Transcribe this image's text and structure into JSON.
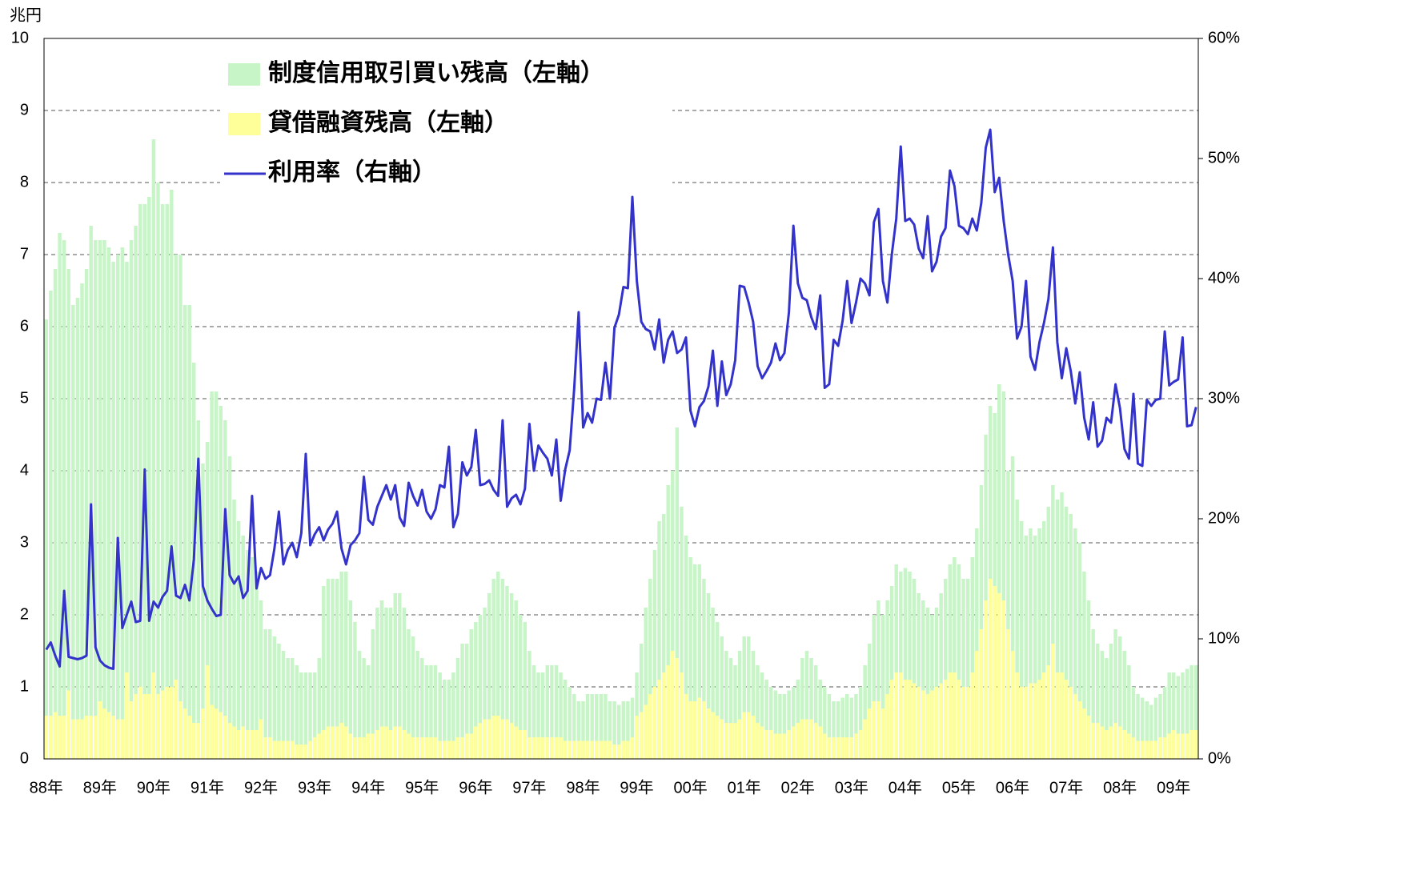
{
  "chart_data": {
    "type": "bar-line",
    "unit_label": "兆円",
    "categories": [
      "88年",
      null,
      null,
      null,
      null,
      null,
      null,
      null,
      null,
      null,
      null,
      null,
      "89年",
      null,
      null,
      null,
      null,
      null,
      null,
      null,
      null,
      null,
      null,
      null,
      "90年",
      null,
      null,
      null,
      null,
      null,
      null,
      null,
      null,
      null,
      null,
      null,
      "91年",
      null,
      null,
      null,
      null,
      null,
      null,
      null,
      null,
      null,
      null,
      null,
      "92年",
      null,
      null,
      null,
      null,
      null,
      null,
      null,
      null,
      null,
      null,
      null,
      "93年",
      null,
      null,
      null,
      null,
      null,
      null,
      null,
      null,
      null,
      null,
      null,
      "94年",
      null,
      null,
      null,
      null,
      null,
      null,
      null,
      null,
      null,
      null,
      null,
      "95年",
      null,
      null,
      null,
      null,
      null,
      null,
      null,
      null,
      null,
      null,
      null,
      "96年",
      null,
      null,
      null,
      null,
      null,
      null,
      null,
      null,
      null,
      null,
      null,
      "97年",
      null,
      null,
      null,
      null,
      null,
      null,
      null,
      null,
      null,
      null,
      null,
      "98年",
      null,
      null,
      null,
      null,
      null,
      null,
      null,
      null,
      null,
      null,
      null,
      "99年",
      null,
      null,
      null,
      null,
      null,
      null,
      null,
      null,
      null,
      null,
      null,
      "00年",
      null,
      null,
      null,
      null,
      null,
      null,
      null,
      null,
      null,
      null,
      null,
      "01年",
      null,
      null,
      null,
      null,
      null,
      null,
      null,
      null,
      null,
      null,
      null,
      "02年",
      null,
      null,
      null,
      null,
      null,
      null,
      null,
      null,
      null,
      null,
      null,
      "03年",
      null,
      null,
      null,
      null,
      null,
      null,
      null,
      null,
      null,
      null,
      null,
      "04年",
      null,
      null,
      null,
      null,
      null,
      null,
      null,
      null,
      null,
      null,
      null,
      "05年",
      null,
      null,
      null,
      null,
      null,
      null,
      null,
      null,
      null,
      null,
      null,
      "06年",
      null,
      null,
      null,
      null,
      null,
      null,
      null,
      null,
      null,
      null,
      null,
      "07年",
      null,
      null,
      null,
      null,
      null,
      null,
      null,
      null,
      null,
      null,
      null,
      "08年",
      null,
      null,
      null,
      null,
      null,
      null,
      null,
      null,
      null,
      null,
      null,
      "09年",
      null,
      null,
      null,
      null,
      null
    ],
    "series": [
      {
        "name": "制度信用取引買い残高（左軸）",
        "color": "#c8f5c8",
        "kind": "bar",
        "values": [
          6.1,
          6.5,
          6.8,
          7.3,
          7.2,
          6.8,
          6.3,
          6.4,
          6.6,
          6.8,
          7.4,
          7.2,
          7.2,
          7.2,
          7.1,
          6.9,
          7.0,
          7.1,
          6.9,
          7.2,
          7.4,
          7.7,
          7.7,
          7.8,
          8.6,
          8.0,
          7.7,
          7.7,
          7.9,
          7.0,
          7.0,
          6.3,
          6.3,
          5.5,
          4.7,
          4.1,
          4.4,
          5.1,
          5.1,
          4.9,
          4.7,
          4.2,
          3.6,
          3.3,
          3.1,
          2.9,
          2.8,
          2.6,
          2.2,
          1.8,
          1.8,
          1.7,
          1.6,
          1.5,
          1.4,
          1.4,
          1.3,
          1.2,
          1.2,
          1.2,
          1.2,
          1.4,
          2.4,
          2.5,
          2.5,
          2.5,
          2.6,
          2.6,
          2.2,
          1.9,
          1.5,
          1.4,
          1.3,
          1.8,
          2.1,
          2.2,
          2.1,
          2.1,
          2.3,
          2.3,
          2.1,
          1.8,
          1.7,
          1.5,
          1.4,
          1.3,
          1.3,
          1.3,
          1.2,
          1.1,
          1.1,
          1.2,
          1.4,
          1.6,
          1.6,
          1.8,
          1.9,
          2.0,
          2.1,
          2.3,
          2.5,
          2.6,
          2.5,
          2.4,
          2.3,
          2.2,
          2.0,
          1.9,
          1.5,
          1.3,
          1.2,
          1.2,
          1.3,
          1.3,
          1.3,
          1.2,
          1.1,
          1.0,
          0.9,
          0.8,
          0.8,
          0.9,
          0.9,
          0.9,
          0.9,
          0.9,
          0.8,
          0.8,
          0.75,
          0.8,
          0.8,
          0.85,
          1.2,
          1.6,
          2.1,
          2.5,
          2.9,
          3.3,
          3.4,
          3.8,
          4.0,
          4.6,
          3.5,
          3.1,
          2.8,
          2.7,
          2.7,
          2.5,
          2.3,
          2.1,
          1.9,
          1.7,
          1.5,
          1.4,
          1.3,
          1.5,
          1.7,
          1.7,
          1.5,
          1.3,
          1.2,
          1.1,
          1.0,
          0.95,
          0.9,
          0.9,
          0.95,
          1.0,
          1.1,
          1.4,
          1.5,
          1.4,
          1.3,
          1.1,
          1.0,
          0.9,
          0.8,
          0.8,
          0.85,
          0.9,
          0.85,
          0.9,
          1.0,
          1.3,
          1.6,
          2.0,
          2.2,
          2.0,
          2.2,
          2.4,
          2.7,
          2.6,
          2.65,
          2.6,
          2.5,
          2.3,
          2.2,
          2.1,
          2.0,
          2.1,
          2.3,
          2.5,
          2.7,
          2.8,
          2.7,
          2.5,
          2.5,
          2.8,
          3.2,
          3.8,
          4.5,
          4.9,
          4.8,
          5.2,
          5.1,
          4.0,
          4.2,
          3.6,
          3.3,
          3.1,
          3.2,
          3.1,
          3.2,
          3.3,
          3.5,
          3.8,
          3.6,
          3.7,
          3.5,
          3.4,
          3.2,
          3.0,
          2.6,
          2.2,
          1.8,
          1.6,
          1.5,
          1.4,
          1.6,
          1.8,
          1.7,
          1.5,
          1.3,
          1.0,
          0.9,
          0.85,
          0.8,
          0.75,
          0.85,
          0.9,
          1.0,
          1.2,
          1.2,
          1.15,
          1.2,
          1.25,
          1.3,
          1.3
        ]
      },
      {
        "name": "貸借融資残高（左軸）",
        "color": "#ffff99",
        "kind": "bar",
        "values": [
          0.6,
          0.6,
          0.65,
          0.6,
          0.6,
          0.95,
          0.55,
          0.55,
          0.55,
          0.6,
          0.6,
          0.6,
          0.8,
          0.7,
          0.65,
          0.6,
          0.55,
          0.55,
          1.2,
          0.8,
          0.9,
          1.0,
          0.9,
          0.9,
          1.2,
          0.9,
          0.95,
          1.0,
          1.0,
          1.1,
          0.8,
          0.7,
          0.6,
          0.5,
          0.5,
          0.7,
          1.3,
          0.75,
          0.7,
          0.65,
          0.6,
          0.5,
          0.45,
          0.4,
          0.45,
          0.4,
          0.4,
          0.4,
          0.55,
          0.3,
          0.3,
          0.25,
          0.25,
          0.25,
          0.25,
          0.25,
          0.2,
          0.2,
          0.2,
          0.25,
          0.3,
          0.35,
          0.4,
          0.45,
          0.45,
          0.45,
          0.5,
          0.45,
          0.35,
          0.3,
          0.3,
          0.3,
          0.35,
          0.35,
          0.4,
          0.45,
          0.45,
          0.4,
          0.45,
          0.45,
          0.4,
          0.35,
          0.3,
          0.3,
          0.3,
          0.3,
          0.3,
          0.3,
          0.25,
          0.25,
          0.25,
          0.25,
          0.3,
          0.3,
          0.35,
          0.35,
          0.45,
          0.5,
          0.55,
          0.55,
          0.6,
          0.6,
          0.55,
          0.55,
          0.5,
          0.45,
          0.4,
          0.4,
          0.3,
          0.3,
          0.3,
          0.3,
          0.3,
          0.3,
          0.3,
          0.3,
          0.25,
          0.25,
          0.25,
          0.25,
          0.25,
          0.25,
          0.25,
          0.25,
          0.25,
          0.25,
          0.25,
          0.2,
          0.2,
          0.25,
          0.25,
          0.3,
          0.6,
          0.65,
          0.75,
          0.9,
          1.0,
          1.1,
          1.2,
          1.3,
          1.5,
          1.4,
          1.2,
          0.9,
          0.8,
          0.8,
          0.85,
          0.8,
          0.7,
          0.65,
          0.6,
          0.55,
          0.5,
          0.5,
          0.5,
          0.55,
          0.65,
          0.65,
          0.6,
          0.5,
          0.45,
          0.4,
          0.4,
          0.35,
          0.35,
          0.35,
          0.4,
          0.45,
          0.5,
          0.55,
          0.55,
          0.55,
          0.5,
          0.45,
          0.35,
          0.3,
          0.3,
          0.3,
          0.3,
          0.3,
          0.3,
          0.35,
          0.4,
          0.55,
          0.7,
          0.8,
          0.8,
          0.7,
          0.9,
          1.1,
          1.2,
          1.2,
          1.1,
          1.1,
          1.05,
          1.0,
          0.95,
          0.9,
          0.95,
          1.0,
          1.05,
          1.1,
          1.2,
          1.2,
          1.1,
          1.0,
          1.0,
          1.2,
          1.5,
          1.8,
          2.2,
          2.5,
          2.4,
          2.3,
          2.2,
          1.8,
          1.5,
          1.2,
          1.0,
          1.0,
          1.05,
          1.05,
          1.1,
          1.2,
          1.3,
          1.6,
          1.2,
          1.2,
          1.1,
          1.0,
          0.9,
          0.8,
          0.7,
          0.6,
          0.5,
          0.5,
          0.45,
          0.4,
          0.45,
          0.5,
          0.45,
          0.4,
          0.35,
          0.3,
          0.25,
          0.25,
          0.25,
          0.25,
          0.25,
          0.3,
          0.3,
          0.35,
          0.4,
          0.35,
          0.35,
          0.35,
          0.4,
          0.4
        ]
      },
      {
        "name": "利用率（右軸）",
        "color": "#3333cc",
        "kind": "line",
        "axis": "y2",
        "values": [
          9.1,
          9.7,
          8.6,
          7.7,
          14.0,
          8.5,
          8.4,
          8.3,
          8.4,
          8.6,
          21.2,
          9.3,
          8.2,
          7.8,
          7.6,
          7.5,
          18.4,
          10.9,
          12.0,
          13.1,
          11.4,
          11.5,
          24.1,
          11.5,
          13.1,
          12.6,
          13.5,
          14.0,
          17.7,
          13.6,
          13.4,
          14.5,
          13.2,
          16.6,
          25.0,
          14.4,
          13.2,
          12.5,
          11.9,
          12.0,
          20.8,
          15.3,
          14.6,
          15.2,
          13.4,
          14.0,
          21.9,
          14.2,
          15.9,
          15.0,
          15.3,
          17.5,
          20.6,
          16.2,
          17.4,
          18.0,
          16.8,
          18.8,
          25.4,
          17.8,
          18.7,
          19.3,
          18.2,
          19.1,
          19.6,
          20.6,
          17.5,
          16.2,
          17.8,
          18.2,
          18.8,
          23.5,
          19.9,
          19.5,
          21.0,
          21.9,
          22.8,
          21.6,
          22.8,
          20.1,
          19.4,
          23.0,
          21.9,
          21.1,
          22.4,
          20.6,
          20.0,
          20.8,
          22.8,
          22.6,
          26.0,
          19.3,
          20.4,
          24.7,
          23.6,
          24.3,
          27.4,
          22.8,
          22.9,
          23.2,
          22.4,
          21.9,
          28.2,
          21.0,
          21.7,
          22.0,
          21.2,
          22.5,
          27.9,
          24.0,
          26.1,
          25.5,
          25.0,
          23.6,
          26.6,
          21.5,
          24.1,
          25.7,
          30.8,
          37.2,
          27.6,
          28.8,
          28.0,
          30.0,
          29.9,
          33.0,
          30.0,
          35.9,
          37.0,
          39.3,
          39.2,
          46.8,
          39.8,
          36.4,
          35.8,
          35.6,
          34.1,
          36.6,
          33.0,
          34.9,
          35.6,
          33.8,
          34.1,
          35.1,
          29.0,
          27.7,
          29.3,
          29.8,
          31.0,
          34.0,
          29.4,
          33.1,
          30.3,
          31.2,
          33.2,
          39.4,
          39.3,
          38.0,
          36.4,
          32.7,
          31.7,
          32.3,
          33.0,
          34.6,
          33.2,
          33.8,
          37.2,
          44.4,
          39.6,
          38.4,
          38.2,
          36.8,
          35.8,
          38.6,
          30.9,
          31.2,
          34.9,
          34.4,
          36.5,
          39.8,
          36.3,
          38.0,
          40.0,
          39.6,
          38.6,
          44.7,
          45.8,
          39.8,
          38.0,
          42.0,
          45.0,
          51.0,
          44.8,
          45.0,
          44.5,
          42.5,
          41.7,
          45.2,
          40.6,
          41.4,
          43.5,
          44.2,
          49.0,
          47.7,
          44.4,
          44.2,
          43.7,
          45.0,
          44.0,
          46.3,
          50.9,
          52.4,
          47.2,
          48.4,
          44.8,
          42.0,
          39.8,
          35.0,
          36.0,
          39.8,
          33.5,
          32.4,
          34.7,
          36.3,
          38.3,
          42.6,
          34.7,
          31.7,
          34.2,
          32.3,
          29.6,
          32.2,
          28.4,
          26.6,
          29.7,
          26.0,
          26.5,
          28.4,
          28.0,
          31.2,
          29.2,
          25.8,
          25.0,
          30.4,
          24.6,
          24.4,
          29.9,
          29.4,
          29.9,
          30.0,
          35.6,
          31.1,
          31.4,
          31.6,
          35.1,
          27.7,
          27.8,
          29.3
        ]
      }
    ],
    "ylim": [
      0,
      10
    ],
    "yticks": [
      0,
      1,
      2,
      3,
      4,
      5,
      6,
      7,
      8,
      9,
      10
    ],
    "y2lim": [
      0,
      60
    ],
    "y2ticks": [
      {
        "value": 0,
        "label": "0%"
      },
      {
        "value": 10,
        "label": "10%"
      },
      {
        "value": 20,
        "label": "20%"
      },
      {
        "value": 30,
        "label": "30%"
      },
      {
        "value": 40,
        "label": "40%"
      },
      {
        "value": 50,
        "label": "50%"
      },
      {
        "value": 60,
        "label": "60%"
      }
    ],
    "grid": true
  }
}
